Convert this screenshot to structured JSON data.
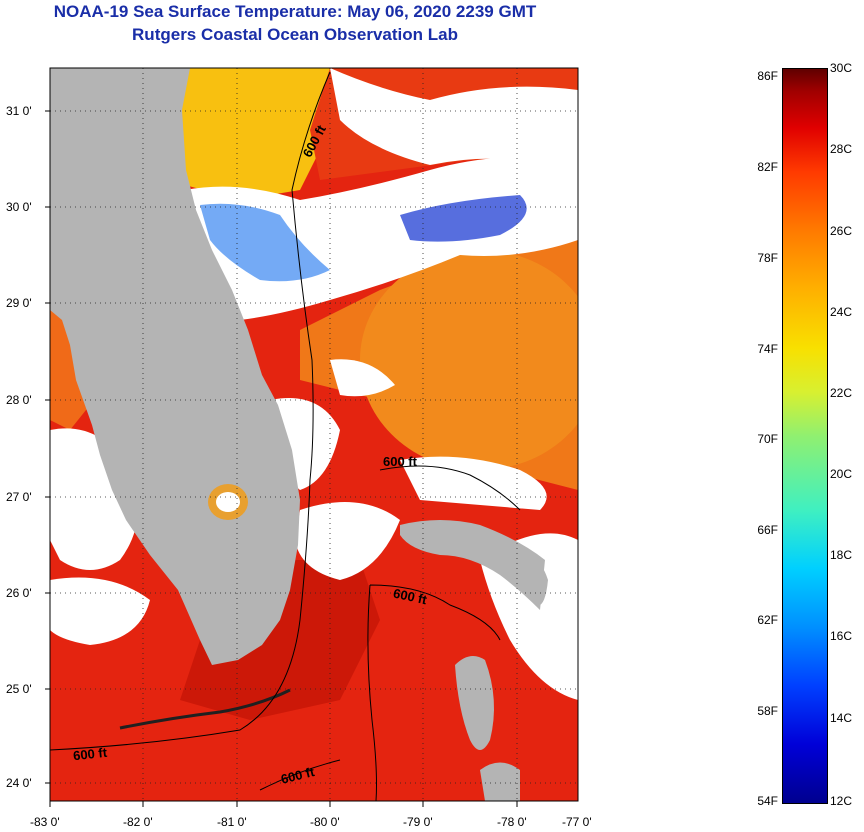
{
  "header": {
    "title_line1": "NOAA-19 Sea Surface Temperature:  May 06, 2020 2239 GMT",
    "title_line2": "Rutgers Coastal Ocean Observation Lab"
  },
  "map": {
    "latitude_labels": [
      "31 0'",
      "30 0'",
      "29 0'",
      "28 0'",
      "27 0'",
      "26 0'",
      "25 0'",
      "24 0'"
    ],
    "longitude_labels": [
      "-83 0'",
      "-82 0'",
      "-81 0'",
      "-80 0'",
      "-79 0'",
      "-78 0'",
      "-77 0'"
    ],
    "contour_labels": [
      "600 ft",
      "600 ft",
      "600 ft",
      "600 ft",
      "600 ft"
    ]
  },
  "colorbar": {
    "fahrenheit_labels": [
      "86F",
      "82F",
      "78F",
      "74F",
      "70F",
      "66F",
      "62F",
      "58F",
      "54F"
    ],
    "celsius_labels": [
      "30C",
      "28C",
      "26C",
      "24C",
      "22C",
      "20C",
      "18C",
      "16C",
      "14C",
      "12C"
    ]
  },
  "colors": {
    "title": "#1a2ea8",
    "land": "#b4b4b4",
    "ocean_warm": "#e42410",
    "ocean_orange": "#f07818",
    "ocean_yellow": "#f8c010",
    "cloud": "#ffffff"
  }
}
